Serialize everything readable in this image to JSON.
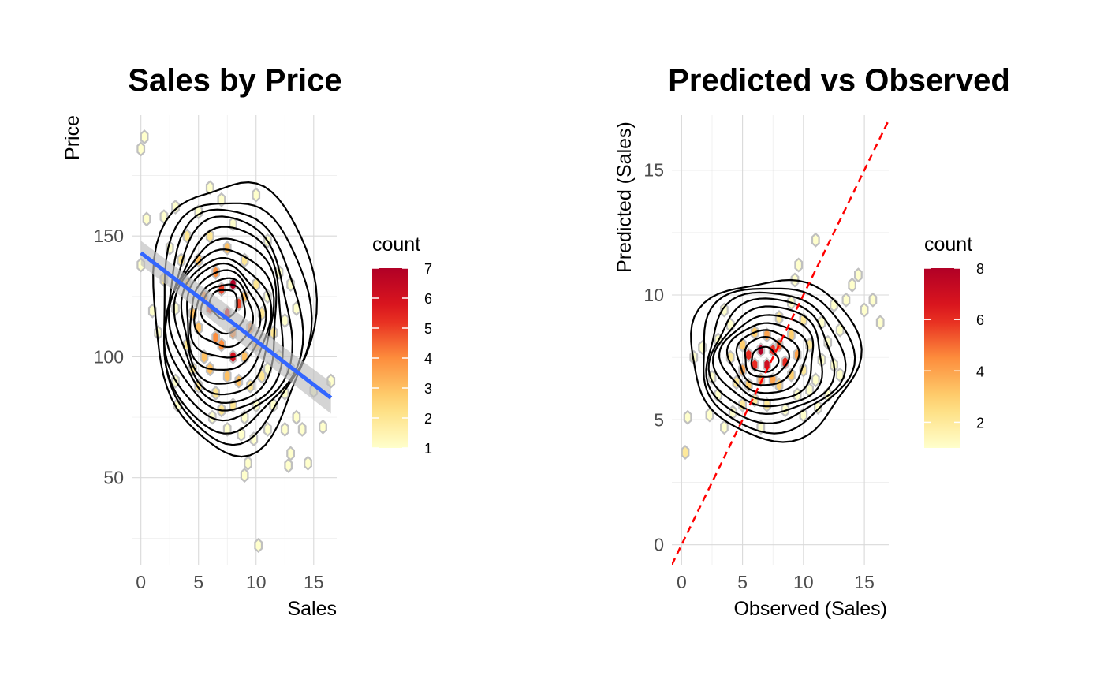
{
  "colors": {
    "count_low": "#ffffcc",
    "count_mid1": "#fed976",
    "count_mid2": "#fd8d3c",
    "count_mid3": "#e31a1c",
    "count_high": "#b10026",
    "regression_line": "#3366ff",
    "confidence_band": "#bdbdbd",
    "identity_line": "#ff0000",
    "contour": "#000000",
    "hex_outline": "#c0c0c0"
  },
  "chart_data": [
    {
      "type": "scatter",
      "subtype": "hexbin with 2d density contours and linear fit",
      "title": "Sales by Price",
      "xlabel": "Sales",
      "ylabel": "Price",
      "xlim": [
        -0.8,
        17
      ],
      "ylim": [
        14,
        200
      ],
      "x_ticks": [
        0,
        5,
        10,
        15
      ],
      "x_tick_labels": [
        "0",
        "5",
        "10",
        "15"
      ],
      "y_ticks": [
        50,
        100,
        150
      ],
      "y_tick_labels": [
        "50",
        "100",
        "150"
      ],
      "grid": true,
      "legend": {
        "title": "count",
        "position": "right",
        "min": 1,
        "max": 7,
        "ticks": [
          1,
          2,
          3,
          4,
          5,
          6,
          7
        ],
        "tick_labels": [
          "1",
          "2",
          "3",
          "4",
          "5",
          "6",
          "7"
        ]
      },
      "fit": {
        "x": [
          0,
          16.5
        ],
        "y": [
          143,
          83
        ],
        "band_halfwidth": [
          5,
          6.5
        ]
      },
      "contours": [
        {
          "cx": 8.0,
          "cy": 118,
          "rx": 7.0,
          "ry": 56
        },
        {
          "cx": 8.0,
          "cy": 116,
          "rx": 6.4,
          "ry": 50
        },
        {
          "cx": 7.8,
          "cy": 115,
          "rx": 5.9,
          "ry": 46
        },
        {
          "cx": 7.6,
          "cy": 115,
          "rx": 5.4,
          "ry": 42
        },
        {
          "cx": 7.5,
          "cy": 115,
          "rx": 5.0,
          "ry": 38
        },
        {
          "cx": 7.4,
          "cy": 115,
          "rx": 4.6,
          "ry": 34
        },
        {
          "cx": 7.3,
          "cy": 115,
          "rx": 4.2,
          "ry": 30
        },
        {
          "cx": 7.3,
          "cy": 115,
          "rx": 3.8,
          "ry": 26
        },
        {
          "cx": 7.2,
          "cy": 116,
          "rx": 3.4,
          "ry": 22
        },
        {
          "cx": 7.2,
          "cy": 117,
          "rx": 3.0,
          "ry": 18
        },
        {
          "cx": 7.2,
          "cy": 118,
          "rx": 2.5,
          "ry": 14
        },
        {
          "cx": 7.2,
          "cy": 120,
          "rx": 1.9,
          "ry": 10
        },
        {
          "cx": 7.2,
          "cy": 122,
          "rx": 1.2,
          "ry": 6
        }
      ],
      "points": [
        [
          0.0,
          186,
          1
        ],
        [
          0.3,
          191,
          1
        ],
        [
          0.5,
          157,
          1
        ],
        [
          0.0,
          138,
          1
        ],
        [
          1.0,
          119,
          1
        ],
        [
          1.5,
          110,
          1
        ],
        [
          2.0,
          132,
          2
        ],
        [
          2.5,
          145,
          1
        ],
        [
          2.0,
          158,
          1
        ],
        [
          3.0,
          162,
          1
        ],
        [
          3.5,
          140,
          2
        ],
        [
          3.0,
          120,
          1
        ],
        [
          3.0,
          90,
          1
        ],
        [
          3.2,
          80,
          1
        ],
        [
          4.0,
          150,
          2
        ],
        [
          4.0,
          130,
          3
        ],
        [
          4.5,
          118,
          3
        ],
        [
          4.0,
          105,
          2
        ],
        [
          4.5,
          95,
          2
        ],
        [
          5.0,
          160,
          1
        ],
        [
          5.0,
          140,
          3
        ],
        [
          5.5,
          125,
          4
        ],
        [
          5.0,
          112,
          3
        ],
        [
          5.5,
          100,
          3
        ],
        [
          5.0,
          88,
          2
        ],
        [
          6.0,
          170,
          1
        ],
        [
          6.0,
          150,
          2
        ],
        [
          6.5,
          135,
          4
        ],
        [
          6.0,
          120,
          5
        ],
        [
          6.5,
          108,
          4
        ],
        [
          6.0,
          95,
          3
        ],
        [
          6.5,
          85,
          2
        ],
        [
          7.0,
          165,
          1
        ],
        [
          7.5,
          145,
          3
        ],
        [
          7.0,
          128,
          5
        ],
        [
          7.5,
          118,
          6
        ],
        [
          7.0,
          105,
          4
        ],
        [
          7.5,
          92,
          3
        ],
        [
          7.0,
          78,
          2
        ],
        [
          8.0,
          155,
          1
        ],
        [
          8.0,
          130,
          7
        ],
        [
          8.5,
          122,
          5
        ],
        [
          8.0,
          110,
          4
        ],
        [
          8.0,
          100,
          6
        ],
        [
          8.5,
          90,
          3
        ],
        [
          8.0,
          80,
          2
        ],
        [
          7.5,
          70,
          1
        ],
        [
          9.0,
          140,
          2
        ],
        [
          9.0,
          125,
          3
        ],
        [
          9.5,
          112,
          4
        ],
        [
          9.0,
          100,
          3
        ],
        [
          9.5,
          88,
          2
        ],
        [
          9.0,
          75,
          1
        ],
        [
          10.0,
          167,
          1
        ],
        [
          10.0,
          130,
          2
        ],
        [
          10.5,
          118,
          2
        ],
        [
          10.0,
          105,
          3
        ],
        [
          10.5,
          92,
          2
        ],
        [
          10.0,
          80,
          1
        ],
        [
          9.8,
          66,
          1
        ],
        [
          11.0,
          148,
          1
        ],
        [
          11.0,
          125,
          1
        ],
        [
          11.5,
          110,
          2
        ],
        [
          11.0,
          95,
          1
        ],
        [
          11.5,
          80,
          1
        ],
        [
          11.0,
          70,
          1
        ],
        [
          12.0,
          135,
          1
        ],
        [
          12.5,
          115,
          1
        ],
        [
          12.0,
          100,
          1
        ],
        [
          12.5,
          85,
          1
        ],
        [
          12.5,
          70,
          1
        ],
        [
          13.0,
          130,
          1
        ],
        [
          13.5,
          120,
          1
        ],
        [
          13.0,
          95,
          1
        ],
        [
          13.5,
          75,
          1
        ],
        [
          14.0,
          70,
          1
        ],
        [
          14.5,
          56,
          1
        ],
        [
          13.0,
          60,
          1
        ],
        [
          12.8,
          55,
          1
        ],
        [
          15.0,
          86,
          1
        ],
        [
          15.8,
          71,
          1
        ],
        [
          16.5,
          90,
          1
        ],
        [
          9.3,
          56,
          1
        ],
        [
          9.0,
          51,
          1
        ],
        [
          10.2,
          22,
          1
        ],
        [
          6.2,
          75,
          1
        ],
        [
          8.7,
          68,
          1
        ]
      ]
    },
    {
      "type": "scatter",
      "subtype": "hexbin with 2d density contours and identity line",
      "title": "Predicted vs Observed",
      "xlabel": "Observed (Sales)",
      "ylabel": "Predicted (Sales)",
      "xlim": [
        -0.8,
        17
      ],
      "ylim": [
        -0.8,
        17.2
      ],
      "x_ticks": [
        0,
        5,
        10,
        15
      ],
      "x_tick_labels": [
        "0",
        "5",
        "10",
        "15"
      ],
      "y_ticks": [
        0,
        5,
        10,
        15
      ],
      "y_tick_labels": [
        "0",
        "5",
        "10",
        "15"
      ],
      "grid": true,
      "legend": {
        "title": "count",
        "position": "right",
        "min": 1,
        "max": 8,
        "ticks": [
          2,
          4,
          6,
          8
        ],
        "tick_labels": [
          "2",
          "4",
          "6",
          "8"
        ]
      },
      "identity_line": {
        "slope": 1,
        "intercept": 0
      },
      "contours": [
        {
          "cx": 7.6,
          "cy": 7.5,
          "rx": 6.9,
          "ry": 3.2
        },
        {
          "cx": 7.6,
          "cy": 7.5,
          "rx": 6.2,
          "ry": 2.9
        },
        {
          "cx": 7.5,
          "cy": 7.5,
          "rx": 5.6,
          "ry": 2.6
        },
        {
          "cx": 7.4,
          "cy": 7.5,
          "rx": 5.0,
          "ry": 2.3
        },
        {
          "cx": 7.3,
          "cy": 7.5,
          "rx": 4.4,
          "ry": 2.0
        },
        {
          "cx": 7.2,
          "cy": 7.5,
          "rx": 3.8,
          "ry": 1.7
        },
        {
          "cx": 7.1,
          "cy": 7.5,
          "rx": 3.2,
          "ry": 1.4
        },
        {
          "cx": 7.0,
          "cy": 7.5,
          "rx": 2.5,
          "ry": 1.1
        },
        {
          "cx": 6.9,
          "cy": 7.5,
          "rx": 1.8,
          "ry": 0.8
        },
        {
          "cx": 6.8,
          "cy": 7.4,
          "rx": 1.1,
          "ry": 0.5
        }
      ],
      "points": [
        [
          0.3,
          3.7,
          2
        ],
        [
          0.5,
          5.1,
          1
        ],
        [
          1.0,
          7.5,
          1
        ],
        [
          1.7,
          7.9,
          1
        ],
        [
          2.5,
          6.7,
          1
        ],
        [
          2.3,
          5.2,
          1
        ],
        [
          3.0,
          8.2,
          1
        ],
        [
          3.5,
          9.4,
          1
        ],
        [
          3.0,
          6.0,
          1
        ],
        [
          3.5,
          4.7,
          1
        ],
        [
          4.0,
          7.5,
          2
        ],
        [
          4.0,
          8.8,
          1
        ],
        [
          4.5,
          6.5,
          2
        ],
        [
          4.2,
          5.3,
          1
        ],
        [
          5.0,
          8.0,
          3
        ],
        [
          5.0,
          7.0,
          4
        ],
        [
          5.5,
          7.6,
          6
        ],
        [
          5.5,
          6.4,
          3
        ],
        [
          5.0,
          5.6,
          2
        ],
        [
          6.0,
          8.5,
          3
        ],
        [
          6.0,
          7.2,
          6
        ],
        [
          6.5,
          7.8,
          8
        ],
        [
          6.5,
          6.6,
          4
        ],
        [
          6.0,
          5.8,
          2
        ],
        [
          6.5,
          4.7,
          1
        ],
        [
          7.0,
          8.4,
          4
        ],
        [
          7.0,
          7.2,
          7
        ],
        [
          7.5,
          7.8,
          6
        ],
        [
          7.5,
          6.6,
          4
        ],
        [
          7.0,
          5.6,
          2
        ],
        [
          8.0,
          9.1,
          2
        ],
        [
          8.0,
          8.0,
          5
        ],
        [
          8.5,
          7.3,
          6
        ],
        [
          8.0,
          6.4,
          3
        ],
        [
          8.5,
          5.4,
          1
        ],
        [
          9.0,
          9.7,
          1
        ],
        [
          9.0,
          8.4,
          3
        ],
        [
          9.5,
          7.6,
          4
        ],
        [
          9.0,
          6.8,
          3
        ],
        [
          9.5,
          6.0,
          1
        ],
        [
          9.3,
          10.6,
          1
        ],
        [
          9.6,
          11.2,
          1
        ],
        [
          10.0,
          9.0,
          2
        ],
        [
          10.5,
          8.0,
          2
        ],
        [
          10.0,
          7.0,
          2
        ],
        [
          10.5,
          6.2,
          1
        ],
        [
          11.0,
          12.2,
          1
        ],
        [
          11.5,
          8.9,
          1
        ],
        [
          11.5,
          7.4,
          1
        ],
        [
          11.0,
          6.6,
          1
        ],
        [
          12.0,
          8.1,
          1
        ],
        [
          12.5,
          9.6,
          1
        ],
        [
          12.5,
          7.2,
          1
        ],
        [
          12.0,
          6.0,
          1
        ],
        [
          13.0,
          8.6,
          1
        ],
        [
          13.5,
          9.8,
          1
        ],
        [
          13.0,
          6.8,
          1
        ],
        [
          14.0,
          10.4,
          1
        ],
        [
          14.5,
          10.8,
          1
        ],
        [
          15.0,
          9.4,
          1
        ],
        [
          15.7,
          9.8,
          1
        ],
        [
          16.3,
          8.9,
          1
        ],
        [
          10.0,
          5.2,
          1
        ],
        [
          11.2,
          5.5,
          1
        ]
      ]
    }
  ]
}
